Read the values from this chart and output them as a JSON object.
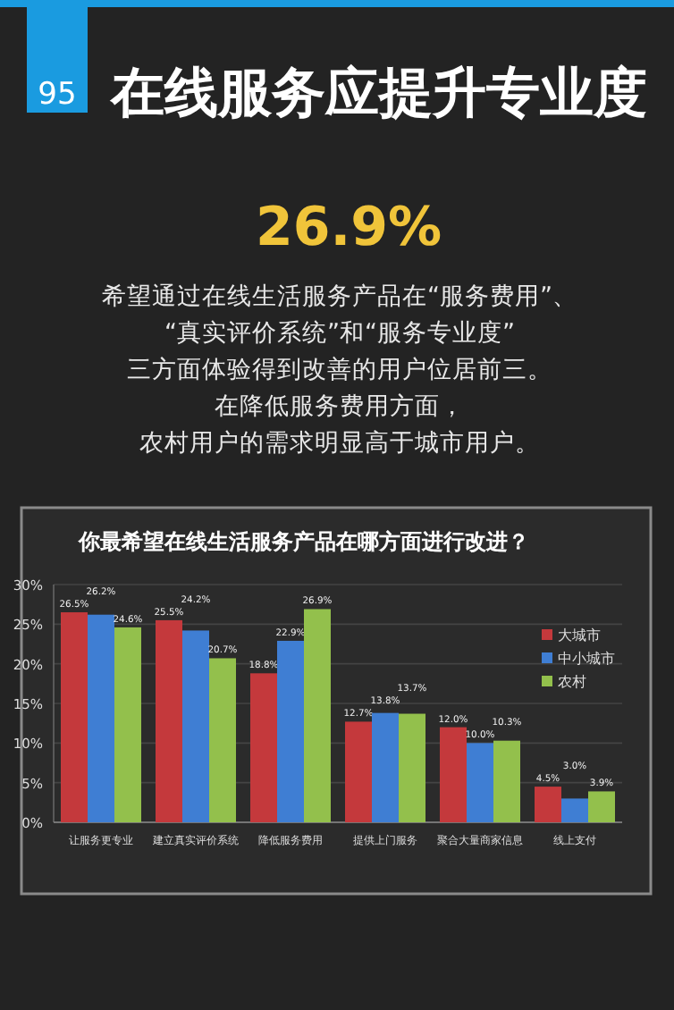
{
  "chart_data": {
    "type": "bar",
    "title": "在线服务应提升专业度",
    "subtitle": "你最希望在线生活服务产品在哪方面进行改进？",
    "annotations": [
      "95",
      "26.9%",
      "希望通过在线生活服务产品在“服务费用”、",
      "“真实评价系统”和“服务专业度”",
      "三方面体验得到改善的用户位居前三。",
      "在降低服务费用方面，",
      "农村用户的需求明显高于城市用户。"
    ],
    "categories": [
      "让服务更专业",
      "建立真实评价系统",
      "降低服务费用",
      "提供上门服务",
      "聚合大量商家信息",
      "线上支付"
    ],
    "series": [
      {
        "name": "大城市",
        "color": "#c4393c",
        "values": [
          26.5,
          25.5,
          18.8,
          12.7,
          12.0,
          4.5
        ],
        "value_labels": [
          "26.5%",
          "25.5%",
          "18.8%",
          "12.7%",
          "12.0%",
          "4.5%"
        ]
      },
      {
        "name": "中小城市",
        "color": "#3f7ed3",
        "values": [
          26.2,
          24.2,
          22.9,
          13.8,
          10.0,
          3.0
        ],
        "value_labels": [
          "26.2%",
          "24.2%",
          "22.9%",
          "13.8%",
          "10.0%",
          "3.0%"
        ]
      },
      {
        "name": "农村",
        "color": "#93c04c",
        "values": [
          24.6,
          20.7,
          26.9,
          13.7,
          10.3,
          3.9
        ],
        "value_labels": [
          "24.6%",
          "20.7%",
          "26.9%",
          "13.7%",
          "10.3%",
          "3.9%"
        ]
      }
    ],
    "ylim": [
      0,
      30
    ],
    "yticks": [
      {
        "value": 0,
        "label": "0%"
      },
      {
        "value": 5,
        "label": "5%"
      },
      {
        "value": 10,
        "label": "10%"
      },
      {
        "value": 15,
        "label": "15%"
      },
      {
        "value": 20,
        "label": "20%"
      },
      {
        "value": 25,
        "label": "25%"
      },
      {
        "value": 30,
        "label": "30%"
      }
    ],
    "grid": "y",
    "legend": "right"
  }
}
